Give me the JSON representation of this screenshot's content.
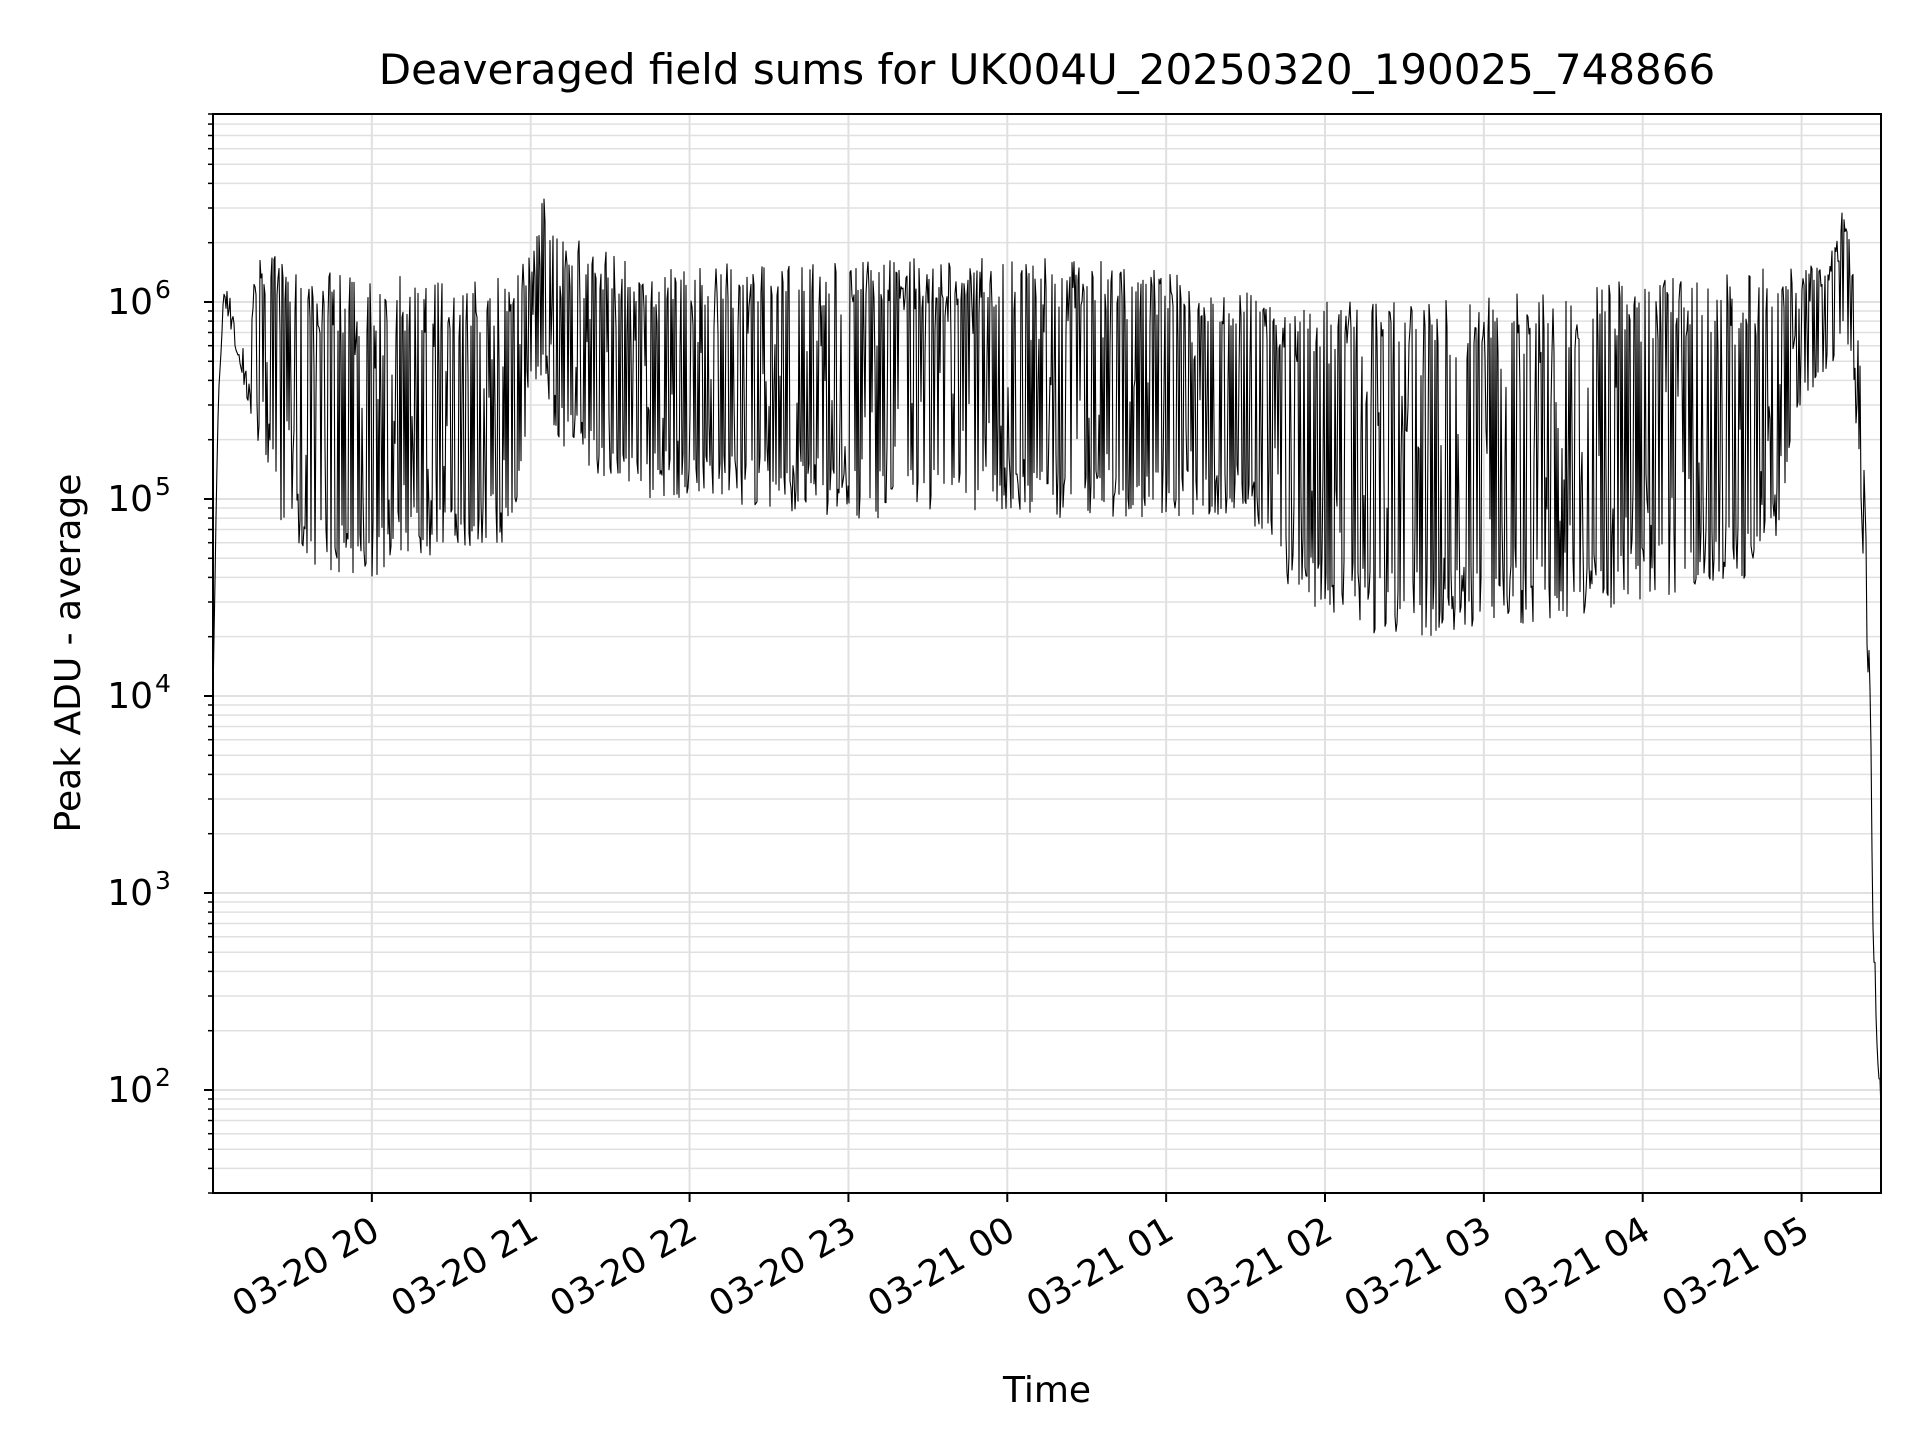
{
  "chart_data": {
    "type": "line",
    "title": "Deaveraged field sums for UK004U_20250320_190025_748866",
    "xlabel": "Time",
    "ylabel": "Peak ADU - average",
    "yscale": "log",
    "grid": true,
    "grid_which": "both",
    "line_color": "#000000",
    "grid_color": "#e0e0e0",
    "xlim": [
      "2025-03-20 19:00",
      "2025-03-21 05:30"
    ],
    "ylim": [
      30,
      9000000
    ],
    "xticks": [
      {
        "t": "2025-03-20 20:00",
        "label": "03-20 20"
      },
      {
        "t": "2025-03-20 21:00",
        "label": "03-20 21"
      },
      {
        "t": "2025-03-20 22:00",
        "label": "03-20 22"
      },
      {
        "t": "2025-03-20 23:00",
        "label": "03-20 23"
      },
      {
        "t": "2025-03-21 00:00",
        "label": "03-21 00"
      },
      {
        "t": "2025-03-21 01:00",
        "label": "03-21 01"
      },
      {
        "t": "2025-03-21 02:00",
        "label": "03-21 02"
      },
      {
        "t": "2025-03-21 03:00",
        "label": "03-21 03"
      },
      {
        "t": "2025-03-21 04:00",
        "label": "03-21 04"
      },
      {
        "t": "2025-03-21 05:00",
        "label": "03-21 05"
      }
    ],
    "yticks": [
      {
        "value": 100,
        "base": "10",
        "exp": "2"
      },
      {
        "value": 1000,
        "base": "10",
        "exp": "3"
      },
      {
        "value": 10000,
        "base": "10",
        "exp": "4"
      },
      {
        "value": 100000,
        "base": "10",
        "exp": "5"
      },
      {
        "value": 1000000,
        "base": "10",
        "exp": "6"
      }
    ],
    "series": [
      {
        "x": [
          "2025-03-20 19:00",
          "2025-03-20 19:02",
          "2025-03-20 19:04",
          "2025-03-20 19:06",
          "2025-03-20 19:08",
          "2025-03-20 19:10",
          "2025-03-20 19:13",
          "2025-03-20 19:16",
          "2025-03-20 19:20",
          "2025-03-20 19:25",
          "2025-03-20 19:30",
          "2025-03-20 19:35",
          "2025-03-20 19:40",
          "2025-03-20 19:45",
          "2025-03-20 19:50",
          "2025-03-20 20:00",
          "2025-03-20 20:10",
          "2025-03-20 20:20",
          "2025-03-20 20:30",
          "2025-03-20 20:40",
          "2025-03-20 20:50",
          "2025-03-20 20:55",
          "2025-03-20 21:00",
          "2025-03-20 21:05",
          "2025-03-20 21:10",
          "2025-03-20 21:20",
          "2025-03-20 21:40",
          "2025-03-20 22:00",
          "2025-03-20 22:30",
          "2025-03-20 23:00",
          "2025-03-20 23:30",
          "2025-03-21 00:00",
          "2025-03-21 00:30",
          "2025-03-21 01:00",
          "2025-03-21 01:20",
          "2025-03-21 01:35",
          "2025-03-21 01:40",
          "2025-03-21 01:50",
          "2025-03-21 02:00",
          "2025-03-21 02:15",
          "2025-03-21 02:30",
          "2025-03-21 02:45",
          "2025-03-21 03:00",
          "2025-03-21 03:30",
          "2025-03-21 04:00",
          "2025-03-21 04:20",
          "2025-03-21 04:40",
          "2025-03-21 04:50",
          "2025-03-21 05:00",
          "2025-03-21 05:10",
          "2025-03-21 05:15",
          "2025-03-21 05:18",
          "2025-03-21 05:20",
          "2025-03-21 05:22",
          "2025-03-21 05:24",
          "2025-03-21 05:26",
          "2025-03-21 05:27",
          "2025-03-21 05:28",
          "2025-03-21 05:29",
          "2025-03-21 05:30"
        ],
        "upper": [
          10000,
          400000,
          1100000,
          1200000,
          800000,
          700000,
          500000,
          1600000,
          1800000,
          1700000,
          1400000,
          1400000,
          1400000,
          1500000,
          1400000,
          1300000,
          1400000,
          1300000,
          1400000,
          1400000,
          1400000,
          1600000,
          1800000,
          3500000,
          2500000,
          2000000,
          1600000,
          1600000,
          1600000,
          1600000,
          1700000,
          1700000,
          1700000,
          1500000,
          1300000,
          1200000,
          1000000,
          1000000,
          1000000,
          1000000,
          1000000,
          1100000,
          1100000,
          1200000,
          1300000,
          1400000,
          1500000,
          1500000,
          1500000,
          1600000,
          3000000,
          2200000,
          1200000,
          500000,
          100000,
          10000,
          1000,
          500,
          300,
          200
        ],
        "lower": [
          10000,
          300000,
          1000000,
          800000,
          600000,
          500000,
          300000,
          200000,
          150000,
          80000,
          60000,
          50000,
          40000,
          40000,
          40000,
          40000,
          45000,
          50000,
          50000,
          55000,
          60000,
          70000,
          400000,
          400000,
          200000,
          150000,
          100000,
          100000,
          90000,
          80000,
          80000,
          80000,
          80000,
          80000,
          80000,
          70000,
          40000,
          30000,
          25000,
          20000,
          20000,
          20000,
          22000,
          25000,
          30000,
          35000,
          40000,
          60000,
          300000,
          450000,
          600000,
          600000,
          300000,
          100000,
          30000,
          6000,
          600,
          260,
          100,
          70
        ]
      }
    ]
  }
}
